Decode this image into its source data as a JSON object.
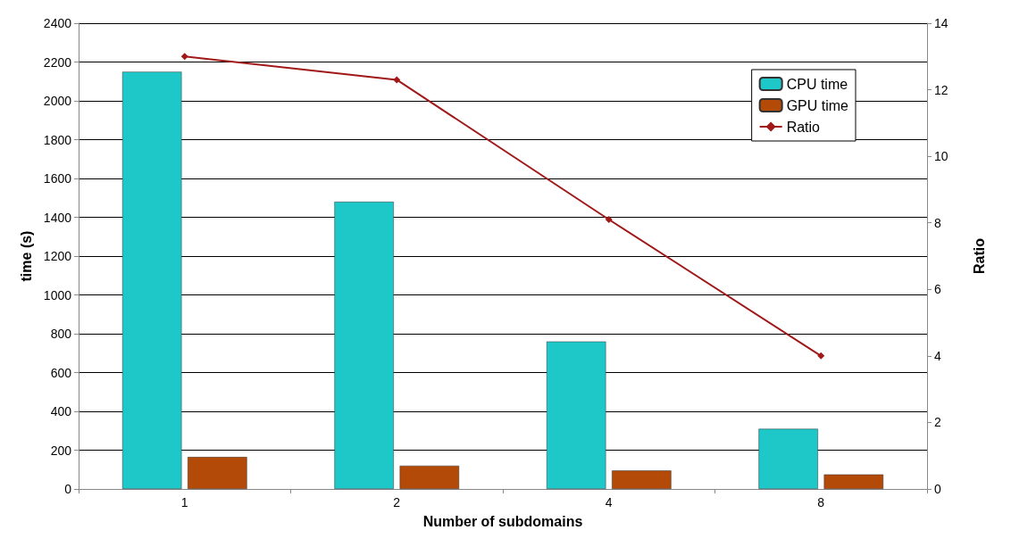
{
  "chart_data": {
    "type": "bar",
    "xlabel": "Number of subdomains",
    "ylabel": "time (s)",
    "y2label": "Ratio",
    "categories": [
      "1",
      "2",
      "4",
      "8"
    ],
    "series": [
      {
        "name": "CPU time",
        "color": "#1fc8c8",
        "values": [
          2150,
          1480,
          760,
          310
        ]
      },
      {
        "name": "GPU time",
        "color": "#b34a08",
        "values": [
          165,
          120,
          95,
          75
        ]
      },
      {
        "name": "Ratio",
        "type": "line",
        "axis": "y2",
        "color": "#a01818",
        "marker": "diamond",
        "values": [
          13,
          12.3,
          8.1,
          4
        ]
      }
    ],
    "ylim": [
      0,
      2400
    ],
    "yticks": [
      0,
      200,
      400,
      600,
      800,
      1000,
      1200,
      1400,
      1600,
      1800,
      2000,
      2200,
      2400
    ],
    "y2lim": [
      0,
      14
    ],
    "y2ticks": [
      0,
      2,
      4,
      6,
      8,
      10,
      12,
      14
    ],
    "grid": "y",
    "legend": "top right"
  }
}
